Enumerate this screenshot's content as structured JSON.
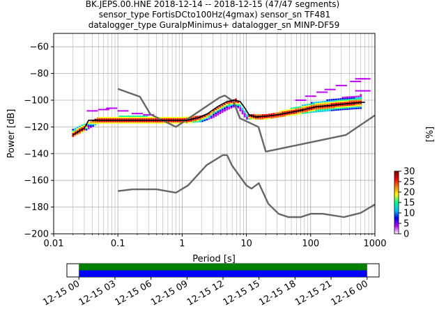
{
  "chart_data": {
    "type": "line",
    "title_lines": [
      "BK.JEPS.00.HNE   2018-12-14 -- 2018-12-15  (47/47 segments)",
      "sensor_type FortisDCto100Hz(4gmax) sensor_sn TF481",
      "datalogger_type GuralpMinimus+ datalogger_sn MINP-DF59"
    ],
    "xlabel": "Period [s]",
    "ylabel": "Power [dB]",
    "x_scale": "log",
    "xlim": [
      0.01,
      1000
    ],
    "ylim": [
      -200,
      -50
    ],
    "x_ticks": [
      {
        "v": 0.01,
        "label": "0.01"
      },
      {
        "v": 0.1,
        "label": "0.1"
      },
      {
        "v": 1,
        "label": "1"
      },
      {
        "v": 10,
        "label": "10"
      },
      {
        "v": 100,
        "label": "100"
      },
      {
        "v": 1000,
        "label": "1000"
      }
    ],
    "y_ticks": [
      {
        "v": -60,
        "label": "−60"
      },
      {
        "v": -80,
        "label": "−80"
      },
      {
        "v": -100,
        "label": "−100"
      },
      {
        "v": -120,
        "label": "−120"
      },
      {
        "v": -140,
        "label": "−140"
      },
      {
        "v": -160,
        "label": "−160"
      },
      {
        "v": -180,
        "label": "−180"
      },
      {
        "v": -200,
        "label": "−200"
      }
    ],
    "grid": true,
    "nhnm": {
      "x": [
        0.1,
        0.22,
        0.32,
        0.8,
        3.8,
        4.6,
        6.3,
        7.9,
        15.4,
        20,
        354.8,
        1000
      ],
      "y": [
        -91.5,
        -97.4,
        -110.5,
        -120,
        -98,
        -96.5,
        -101,
        -113.5,
        -120,
        -138.5,
        -126,
        -111.3
      ]
    },
    "nlnm": {
      "x": [
        0.1,
        0.17,
        0.4,
        0.8,
        1.24,
        2.4,
        4.3,
        5,
        6,
        10,
        12,
        15.6,
        21.9,
        31.6,
        45,
        70,
        101,
        154,
        328,
        600,
        1000
      ],
      "y": [
        -168,
        -166.7,
        -166.7,
        -169.2,
        -163.7,
        -148.6,
        -141.1,
        -141.1,
        -149,
        -163.8,
        -166.2,
        -162.1,
        -177.5,
        -185,
        -187.5,
        -187.5,
        -185,
        -185,
        -187.5,
        -184.4,
        -178
      ]
    },
    "mode": {
      "x": [
        0.02,
        0.025,
        0.03,
        0.035,
        0.05,
        0.08,
        0.1,
        0.2,
        0.4,
        0.8,
        1.2,
        1.8,
        2.5,
        3.5,
        5,
        6.5,
        8,
        9.5,
        11,
        14,
        20,
        30,
        50,
        80,
        120,
        200,
        300,
        500,
        700
      ],
      "y": [
        -126,
        -123,
        -121,
        -115,
        -115,
        -115,
        -115,
        -115,
        -115,
        -115,
        -115,
        -113,
        -110,
        -105,
        -101,
        -100,
        -101,
        -106,
        -111,
        -112.5,
        -112,
        -111,
        -109,
        -107,
        -105,
        -104,
        -103,
        -102,
        -101.5
      ]
    },
    "density_band": {
      "x": [
        0.02,
        0.03,
        0.05,
        0.1,
        0.3,
        1,
        2,
        3,
        5,
        7,
        10,
        20,
        50,
        100,
        300,
        600
      ],
      "y_low": [
        -127,
        -123,
        -117,
        -117,
        -117,
        -117,
        -116,
        -113,
        -107,
        -104,
        -114,
        -114,
        -111,
        -109,
        -107,
        -106
      ],
      "y_high": [
        -122,
        -118,
        -113,
        -112,
        -112,
        -113,
        -112,
        -108,
        -102,
        -99,
        -110,
        -111,
        -106,
        -102,
        -98,
        -96
      ]
    },
    "outliers": [
      {
        "x": 0.04,
        "y": -108
      },
      {
        "x": 0.06,
        "y": -107
      },
      {
        "x": 0.08,
        "y": -106
      },
      {
        "x": 0.12,
        "y": -108
      },
      {
        "x": 0.2,
        "y": -110
      },
      {
        "x": 0.3,
        "y": -111
      },
      {
        "x": 70,
        "y": -100
      },
      {
        "x": 100,
        "y": -97
      },
      {
        "x": 150,
        "y": -94
      },
      {
        "x": 200,
        "y": -92
      },
      {
        "x": 300,
        "y": -89
      },
      {
        "x": 500,
        "y": -86
      },
      {
        "x": 600,
        "y": -84
      },
      {
        "x": 700,
        "y": -84
      },
      {
        "x": 600,
        "y": -93
      },
      {
        "x": 700,
        "y": -93
      }
    ],
    "colorbar": {
      "label": "[%]",
      "range": [
        0,
        30
      ],
      "ticks": [
        {
          "v": 0,
          "label": "0"
        },
        {
          "v": 5,
          "label": "5"
        },
        {
          "v": 10,
          "label": "10"
        },
        {
          "v": 15,
          "label": "15"
        },
        {
          "v": 20,
          "label": "20"
        },
        {
          "v": 25,
          "label": "25"
        },
        {
          "v": 30,
          "label": "30"
        }
      ],
      "colors": [
        "#ffffff",
        "#bf00ff",
        "#0000ff",
        "#00c8ff",
        "#00ff90",
        "#ffff00",
        "#ff8000",
        "#ff0000",
        "#800000"
      ]
    },
    "coverage": {
      "xlim_hours": [
        -1,
        25
      ],
      "bars": [
        {
          "start": 0,
          "end": 24,
          "color": "#008000"
        },
        {
          "start": 0,
          "end": 24,
          "color": "#0000ff"
        }
      ],
      "ticks": [
        {
          "h": 0,
          "label": "12-15 00"
        },
        {
          "h": 3,
          "label": "12-15 03"
        },
        {
          "h": 6,
          "label": "12-15 06"
        },
        {
          "h": 9,
          "label": "12-15 09"
        },
        {
          "h": 12,
          "label": "12-15 12"
        },
        {
          "h": 15,
          "label": "12-15 15"
        },
        {
          "h": 18,
          "label": "12-15 18"
        },
        {
          "h": 21,
          "label": "12-15 21"
        },
        {
          "h": 24,
          "label": "12-16 00"
        }
      ]
    },
    "colors": {
      "noise_model": "#666666",
      "mode": "#000000",
      "grid": "#b0b0b0"
    }
  }
}
